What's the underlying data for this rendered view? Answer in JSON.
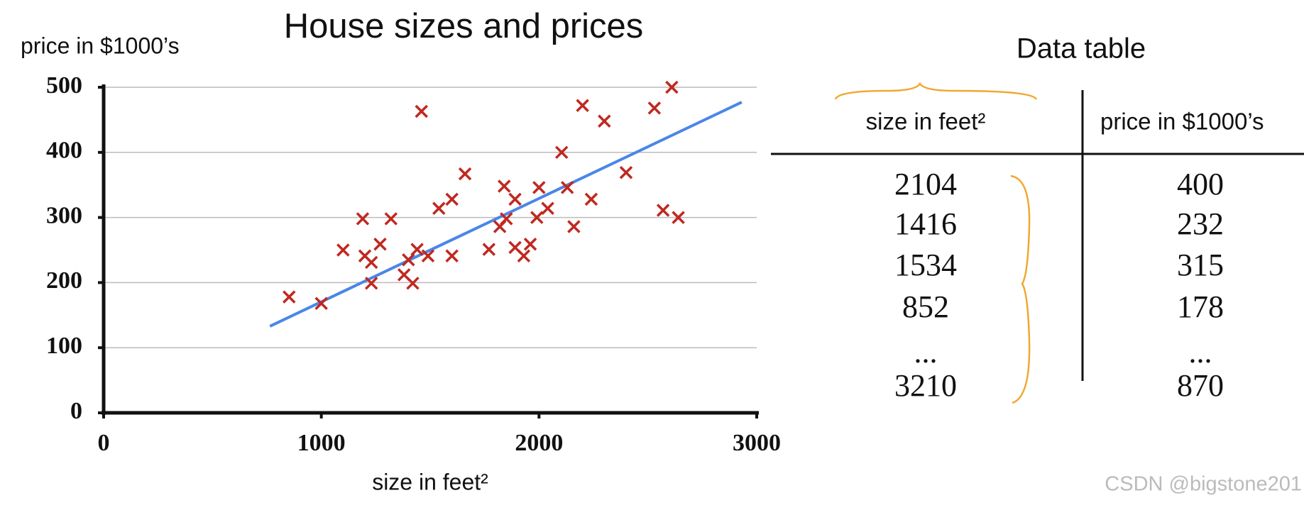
{
  "chart_data": {
    "type": "scatter",
    "title": "House sizes and prices",
    "x_label": "size in feet²",
    "y_label": "price in $1000’s",
    "color": "#c0281f",
    "x": [
      852,
      1000,
      1100,
      1190,
      1200,
      1230,
      1230,
      1270,
      1320,
      1380,
      1400,
      1420,
      1440,
      1460,
      1490,
      1540,
      1600,
      1600,
      1660,
      1770,
      1820,
      1840,
      1850,
      1890,
      1890,
      1930,
      1960,
      1990,
      2000,
      2040,
      2104,
      2130,
      2160,
      2200,
      2240,
      2300,
      2400,
      2530,
      2570,
      2610,
      2640
    ],
    "values": [
      178,
      168,
      250,
      298,
      241,
      231,
      199,
      259,
      298,
      212,
      235,
      199,
      251,
      463,
      241,
      314,
      328,
      241,
      367,
      251,
      286,
      348,
      298,
      328,
      254,
      241,
      259,
      300,
      346,
      314,
      400,
      346,
      286,
      472,
      328,
      448,
      369,
      468,
      311,
      500,
      300
    ],
    "fit_line": {
      "color": "#4a86e8",
      "x": [
        764,
        2931
      ],
      "y": [
        133,
        477
      ]
    },
    "xlim": [
      0,
      3000
    ],
    "xticks": [
      0,
      1000,
      2000,
      3000
    ],
    "ylim": [
      0,
      500
    ],
    "yticks": [
      0,
      100,
      200,
      300,
      400,
      500
    ],
    "grid": true
  },
  "data_table": {
    "title": "Data table",
    "header": [
      "size in feet²",
      "price in $1000’s"
    ],
    "rows": [
      [
        "2104",
        "400"
      ],
      [
        "1416",
        "232"
      ],
      [
        "1534",
        "315"
      ],
      [
        "852",
        "178"
      ],
      [
        "...",
        "..."
      ],
      [
        "3210",
        "870"
      ]
    ]
  },
  "watermark": "CSDN @bigstone201"
}
